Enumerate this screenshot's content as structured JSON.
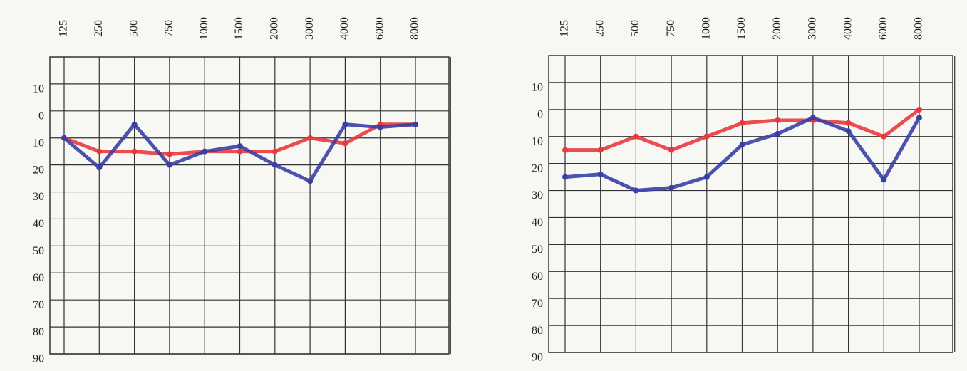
{
  "chart_data": [
    {
      "type": "line",
      "categories": [
        "125",
        "250",
        "500",
        "750",
        "1000",
        "1500",
        "2000",
        "3000",
        "4000",
        "6000",
        "8000"
      ],
      "series": [
        {
          "color": "#e8383d",
          "values": [
            10,
            15,
            15,
            16,
            15,
            15,
            15,
            10,
            12,
            5,
            5
          ]
        },
        {
          "color": "#3a3fa6",
          "values": [
            10,
            21,
            5,
            20,
            15,
            13,
            20,
            26,
            5,
            6,
            5
          ]
        }
      ],
      "ylim": [
        -20,
        90
      ],
      "y_inverted": true,
      "grid": true,
      "yticks": [
        {
          "value": -10,
          "label": "10"
        },
        0,
        10,
        20,
        30,
        40,
        50,
        60,
        70,
        80,
        90
      ]
    },
    {
      "type": "line",
      "categories": [
        "125",
        "250",
        "500",
        "750",
        "1000",
        "1500",
        "2000",
        "3000",
        "4000",
        "6000",
        "8000"
      ],
      "series": [
        {
          "color": "#e8383d",
          "values": [
            15,
            15,
            10,
            15,
            10,
            5,
            4,
            4,
            5,
            10,
            0
          ]
        },
        {
          "color": "#3a3fa6",
          "values": [
            25,
            24,
            30,
            29,
            25,
            13,
            9,
            3,
            8,
            26,
            3
          ]
        }
      ],
      "ylim": [
        -20,
        90
      ],
      "y_inverted": true,
      "grid": true,
      "yticks": [
        {
          "value": -10,
          "label": "10"
        },
        0,
        10,
        20,
        30,
        40,
        50,
        60,
        70,
        80,
        90
      ]
    }
  ]
}
